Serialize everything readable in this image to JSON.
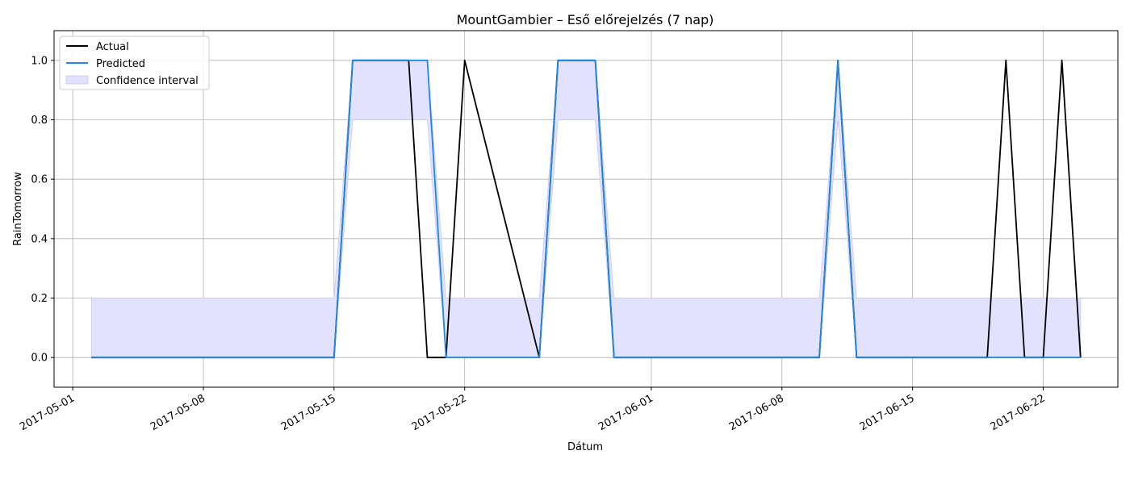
{
  "chart_data": {
    "type": "line",
    "title": "MountGambier – Eső előrejelzés (7 nap)",
    "xlabel": "Dátum",
    "ylabel": "RainTomorrow",
    "x_ticks": [
      "2017-05-01",
      "2017-05-08",
      "2017-05-15",
      "2017-05-22",
      "2017-06-01",
      "2017-06-08",
      "2017-06-15",
      "2017-06-22"
    ],
    "y_ticks": [
      0.0,
      0.2,
      0.4,
      0.6,
      0.8,
      1.0
    ],
    "y_tick_labels": [
      "0.0",
      "0.2",
      "0.4",
      "0.6",
      "0.8",
      "1.0"
    ],
    "ylim": [
      -0.1,
      1.1
    ],
    "xlim": [
      "2017-04-30",
      "2017-06-26"
    ],
    "grid": true,
    "legend_position": "upper-left",
    "series": [
      {
        "name": "Actual",
        "color": "#000000",
        "points": [
          [
            "2017-05-02",
            0
          ],
          [
            "2017-05-15",
            0
          ],
          [
            "2017-05-16",
            1
          ],
          [
            "2017-05-17",
            1
          ],
          [
            "2017-05-18",
            1
          ],
          [
            "2017-05-19",
            1
          ],
          [
            "2017-05-20",
            0
          ],
          [
            "2017-05-21",
            0
          ],
          [
            "2017-05-22",
            1
          ],
          [
            "2017-05-26",
            0
          ],
          [
            "2017-05-27",
            1
          ],
          [
            "2017-05-28",
            1
          ],
          [
            "2017-05-29",
            1
          ],
          [
            "2017-05-30",
            0
          ],
          [
            "2017-05-31",
            0
          ],
          [
            "2017-06-10",
            0
          ],
          [
            "2017-06-11",
            1
          ],
          [
            "2017-06-12",
            0
          ],
          [
            "2017-06-19",
            0
          ],
          [
            "2017-06-20",
            1
          ],
          [
            "2017-06-21",
            0
          ],
          [
            "2017-06-22",
            0
          ],
          [
            "2017-06-23",
            1
          ],
          [
            "2017-06-24",
            0
          ]
        ]
      },
      {
        "name": "Predicted",
        "color": "#1e88e5",
        "points": [
          [
            "2017-05-02",
            0
          ],
          [
            "2017-05-15",
            0
          ],
          [
            "2017-05-16",
            1
          ],
          [
            "2017-05-17",
            1
          ],
          [
            "2017-05-18",
            1
          ],
          [
            "2017-05-19",
            1
          ],
          [
            "2017-05-20",
            1
          ],
          [
            "2017-05-21",
            0
          ],
          [
            "2017-05-26",
            0
          ],
          [
            "2017-05-27",
            1
          ],
          [
            "2017-05-28",
            1
          ],
          [
            "2017-05-29",
            1
          ],
          [
            "2017-05-30",
            0
          ],
          [
            "2017-06-10",
            0
          ],
          [
            "2017-06-11",
            1
          ],
          [
            "2017-06-12",
            0
          ],
          [
            "2017-06-24",
            0
          ]
        ]
      }
    ],
    "confidence_interval": {
      "name": "Confidence interval",
      "color": "#e2e2fe",
      "edge_color": "#c9c9f5",
      "points": [
        [
          "2017-05-02",
          0,
          0.2
        ],
        [
          "2017-05-15",
          0,
          0.2
        ],
        [
          "2017-05-16",
          0.8,
          1
        ],
        [
          "2017-05-17",
          0.8,
          1
        ],
        [
          "2017-05-18",
          0.8,
          1
        ],
        [
          "2017-05-19",
          0.8,
          1
        ],
        [
          "2017-05-20",
          0.8,
          1
        ],
        [
          "2017-05-21",
          0,
          0.2
        ],
        [
          "2017-05-26",
          0,
          0.2
        ],
        [
          "2017-05-27",
          0.8,
          1
        ],
        [
          "2017-05-28",
          0.8,
          1
        ],
        [
          "2017-05-29",
          0.8,
          1
        ],
        [
          "2017-05-30",
          0,
          0.2
        ],
        [
          "2017-06-10",
          0,
          0.2
        ],
        [
          "2017-06-11",
          0.8,
          1
        ],
        [
          "2017-06-12",
          0,
          0.2
        ],
        [
          "2017-06-24",
          0,
          0.2
        ]
      ]
    }
  }
}
